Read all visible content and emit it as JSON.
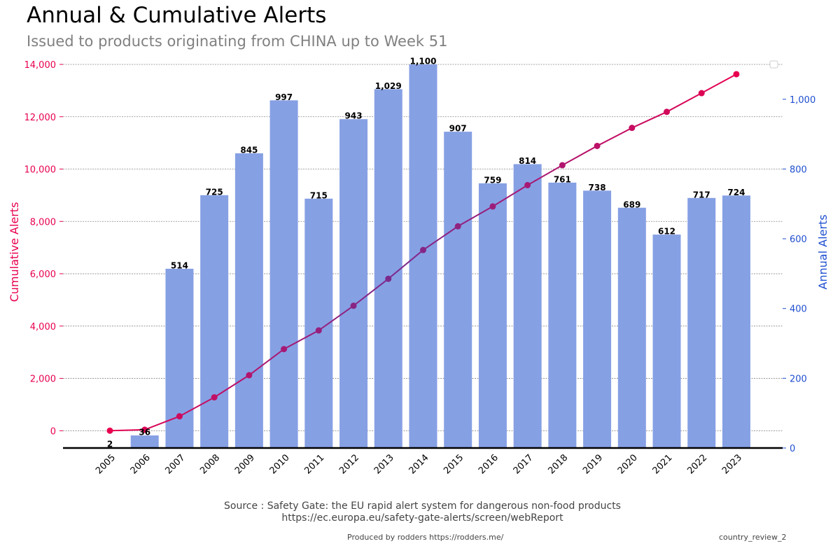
{
  "header": {
    "title": "Annual & Cumulative Alerts",
    "subtitle": "Issued to products originating from CHINA up to Week 51"
  },
  "footer": {
    "source_line1": "Source : Safety Gate: the EU rapid alert system for dangerous non-food products",
    "source_line2": "https://ec.europa.eu/safety-gate-alerts/screen/webReport",
    "produced_by": "Produced by rodders https://rodders.me/",
    "chart_id": "country_review_2"
  },
  "chart_data": {
    "type": "bar+line",
    "categories": [
      "2005",
      "2006",
      "2007",
      "2008",
      "2009",
      "2010",
      "2011",
      "2012",
      "2013",
      "2014",
      "2015",
      "2016",
      "2017",
      "2018",
      "2019",
      "2020",
      "2021",
      "2022",
      "2023"
    ],
    "series": [
      {
        "name": "Annual Alerts",
        "type": "bar",
        "axis": "right",
        "values": [
          2,
          36,
          514,
          725,
          845,
          997,
          715,
          943,
          1029,
          1100,
          907,
          759,
          814,
          761,
          738,
          689,
          612,
          717,
          724
        ],
        "labels": [
          "2",
          "36",
          "514",
          "725",
          "845",
          "997",
          "715",
          "943",
          "1,029",
          "1,100",
          "907",
          "759",
          "814",
          "761",
          "738",
          "689",
          "612",
          "717",
          "724"
        ]
      },
      {
        "name": "Cumulative Alerts",
        "type": "line",
        "axis": "left",
        "values": [
          2,
          38,
          552,
          1277,
          2122,
          3119,
          3834,
          4777,
          5806,
          6906,
          7813,
          8572,
          9386,
          10147,
          10885,
          11574,
          12186,
          12903,
          13627
        ]
      }
    ],
    "ylabel_left": "Cumulative Alerts",
    "ylabel_right": "Annual Alerts",
    "ylim_left": [
      -660,
      14000
    ],
    "ylim_right": [
      0,
      1100
    ],
    "yticks_left": [
      "0",
      "2,000",
      "4,000",
      "6,000",
      "8,000",
      "10,000",
      "12,000",
      "14,000"
    ],
    "yticks_left_values": [
      0,
      2000,
      4000,
      6000,
      8000,
      10000,
      12000,
      14000
    ],
    "yticks_right": [
      "0",
      "200",
      "400",
      "600",
      "800",
      "1,000"
    ],
    "yticks_right_values": [
      0,
      200,
      400,
      600,
      800,
      1000
    ],
    "grid": true,
    "legend": "top-right (empty)",
    "colors": {
      "bars": "#86a0e4",
      "line_start": "#e8004f",
      "line_mid": "#7b2a8c",
      "left_axis": "#e8004f",
      "right_axis": "#1f4fd0"
    }
  }
}
